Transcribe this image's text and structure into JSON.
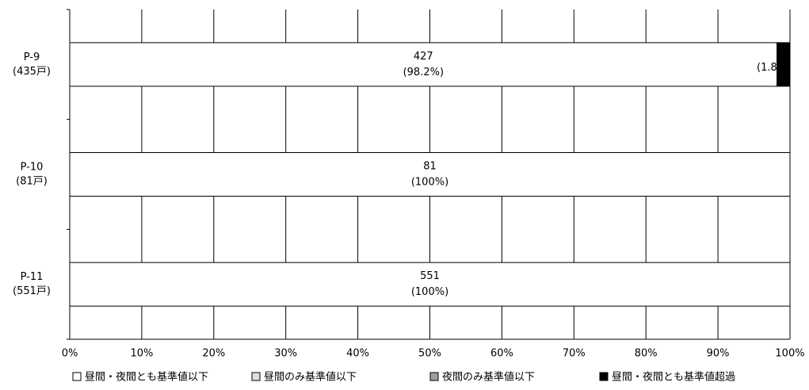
{
  "chart_data": {
    "type": "stacked-barh",
    "categories": [
      [
        "P-9",
        "(435戸)"
      ],
      [
        "P-10",
        "(81戸)"
      ],
      [
        "P-11",
        "(551戸)"
      ]
    ],
    "series": [
      {
        "name": "昼間・夜間とも基準値以下",
        "color": "#ffffff",
        "values": [
          98.2,
          100,
          100
        ],
        "value_labels": [
          [
            "427",
            "(98.2%)"
          ],
          [
            "81",
            "(100%)"
          ],
          [
            "551",
            "(100%)"
          ]
        ]
      },
      {
        "name": "昼間のみ基準値以下",
        "color": "#e0e0e0",
        "values": [
          0,
          0,
          0
        ]
      },
      {
        "name": "夜間のみ基準値以下",
        "color": "#a0a0a0",
        "values": [
          0,
          0,
          0
        ]
      },
      {
        "name": "昼間・夜間とも基準値超過",
        "color": "#000000",
        "values": [
          1.8,
          0,
          0
        ],
        "value_labels": [
          [
            "(1.8%)"
          ],
          null,
          null
        ]
      }
    ],
    "xlim": [
      0,
      100
    ],
    "xticks": [
      {
        "value": 0,
        "label": "0%"
      },
      {
        "value": 10,
        "label": "10%"
      },
      {
        "value": 20,
        "label": "20%"
      },
      {
        "value": 30,
        "label": "30%"
      },
      {
        "value": 40,
        "label": "40%"
      },
      {
        "value": 50,
        "label": "50%"
      },
      {
        "value": 60,
        "label": "60%"
      },
      {
        "value": 70,
        "label": "70%"
      },
      {
        "value": 80,
        "label": "80%"
      },
      {
        "value": 90,
        "label": "90%"
      },
      {
        "value": 100,
        "label": "100%"
      }
    ],
    "grid": true,
    "legend": "bottom"
  }
}
